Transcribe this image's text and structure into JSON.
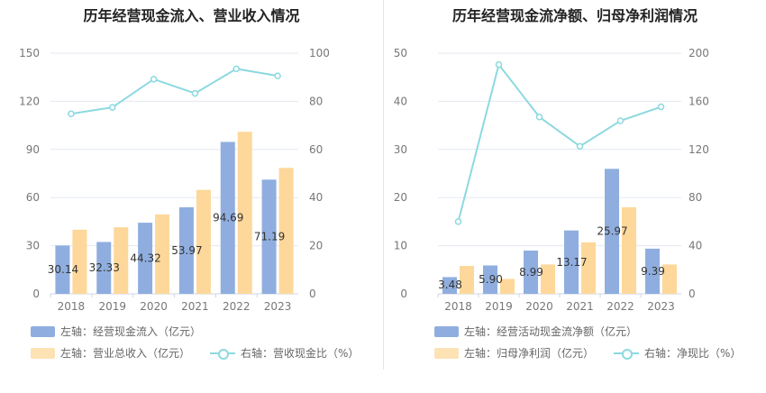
{
  "colors": {
    "bar1": "#8faedf",
    "bar2": "#fdd89a",
    "line": "#8cd9e0",
    "grid": "#e4e8f2"
  },
  "left_title": "历年经营现金流入、营业收入情况",
  "right_title": "历年经营现金流净额、归母净利润情况",
  "left_legend": {
    "bar1": "左轴：经营现金流入（亿元）",
    "bar2": "左轴：营业总收入（亿元）",
    "line": "右轴：营收现金比（%）"
  },
  "right_legend": {
    "bar1": "左轴：经营活动现金流净额（亿元）",
    "bar2": "左轴：归母净利润（亿元）",
    "line": "右轴：净现比（%）"
  },
  "chart_data": [
    {
      "type": "bar",
      "title": "历年经营现金流入、营业收入情况",
      "categories": [
        "2018",
        "2019",
        "2020",
        "2021",
        "2022",
        "2023"
      ],
      "series": [
        {
          "name": "左轴：经营现金流入（亿元）",
          "axis": "left",
          "values": [
            30.14,
            32.33,
            44.32,
            53.97,
            94.69,
            71.19
          ]
        },
        {
          "name": "左轴：营业总收入（亿元）",
          "axis": "left",
          "values": [
            40.0,
            41.5,
            49.5,
            64.8,
            101.0,
            78.5
          ]
        },
        {
          "name": "右轴：营收现金比（%）",
          "axis": "right",
          "type": "line",
          "values": [
            74.8,
            77.5,
            89.2,
            83.3,
            93.5,
            90.6
          ]
        }
      ],
      "data_labels": [
        "30.14",
        "32.33",
        "44.32",
        "53.97",
        "94.69",
        "71.19"
      ],
      "ylim_left": [
        0,
        150
      ],
      "yticks_left": [
        "0",
        "30",
        "60",
        "90",
        "120",
        "150"
      ],
      "ylim_right": [
        0,
        100
      ],
      "yticks_right": [
        "0",
        "20",
        "40",
        "60",
        "80",
        "100"
      ],
      "grid": true,
      "legend_position": "bottom"
    },
    {
      "type": "bar",
      "title": "历年经营现金流净额、归母净利润情况",
      "categories": [
        "2018",
        "2019",
        "2020",
        "2021",
        "2022",
        "2023"
      ],
      "series": [
        {
          "name": "左轴：经营活动现金流净额（亿元）",
          "axis": "left",
          "values": [
            3.48,
            5.9,
            8.99,
            13.17,
            25.97,
            9.39
          ]
        },
        {
          "name": "左轴：归母净利润（亿元）",
          "axis": "left",
          "values": [
            5.8,
            3.1,
            6.1,
            10.7,
            18.0,
            6.1
          ]
        },
        {
          "name": "右轴：净现比（%）",
          "axis": "right",
          "type": "line",
          "values": [
            60.0,
            190.5,
            147.0,
            122.6,
            143.8,
            155.4
          ]
        }
      ],
      "data_labels": [
        "3.48",
        "5.90",
        "8.99",
        "13.17",
        "25.97",
        "9.39"
      ],
      "ylim_left": [
        0,
        50
      ],
      "yticks_left": [
        "0",
        "10",
        "20",
        "30",
        "40",
        "50"
      ],
      "ylim_right": [
        0,
        200
      ],
      "yticks_right": [
        "0",
        "40",
        "80",
        "120",
        "160",
        "200"
      ],
      "grid": true,
      "legend_position": "bottom"
    }
  ]
}
